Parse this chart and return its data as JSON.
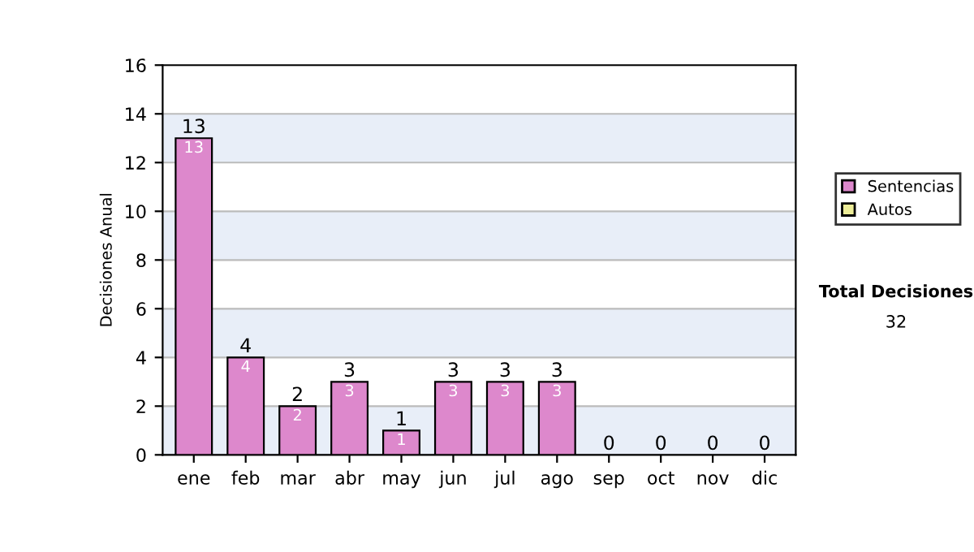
{
  "chart_data": {
    "type": "bar",
    "stacked": true,
    "ylabel": "Decisiones Anual",
    "categories": [
      "ene",
      "feb",
      "mar",
      "abr",
      "may",
      "jun",
      "jul",
      "ago",
      "sep",
      "oct",
      "nov",
      "dic"
    ],
    "series": [
      {
        "name": "Sentencias",
        "color": "#dd88cc",
        "values": [
          13,
          4,
          2,
          3,
          1,
          3,
          3,
          3,
          0,
          0,
          0,
          0
        ],
        "value_labels": [
          "13",
          "4",
          "2",
          "3",
          "1",
          "3",
          "3",
          "3",
          null,
          null,
          null,
          null
        ]
      },
      {
        "name": "Autos",
        "color": "#eeee99",
        "values": [
          0,
          0,
          0,
          0,
          0,
          0,
          0,
          0,
          0,
          0,
          0,
          0
        ]
      }
    ],
    "totals": [
      "13",
      "4",
      "2",
      "3",
      "1",
      "3",
      "3",
      "3",
      "0",
      "0",
      "0",
      "0"
    ],
    "ylim": [
      0,
      16
    ],
    "yticks": [
      0,
      2,
      4,
      6,
      8,
      10,
      12,
      14,
      16
    ],
    "grid": "y",
    "legend": "right",
    "annotations": [
      "Total Decisiones",
      "32"
    ]
  }
}
